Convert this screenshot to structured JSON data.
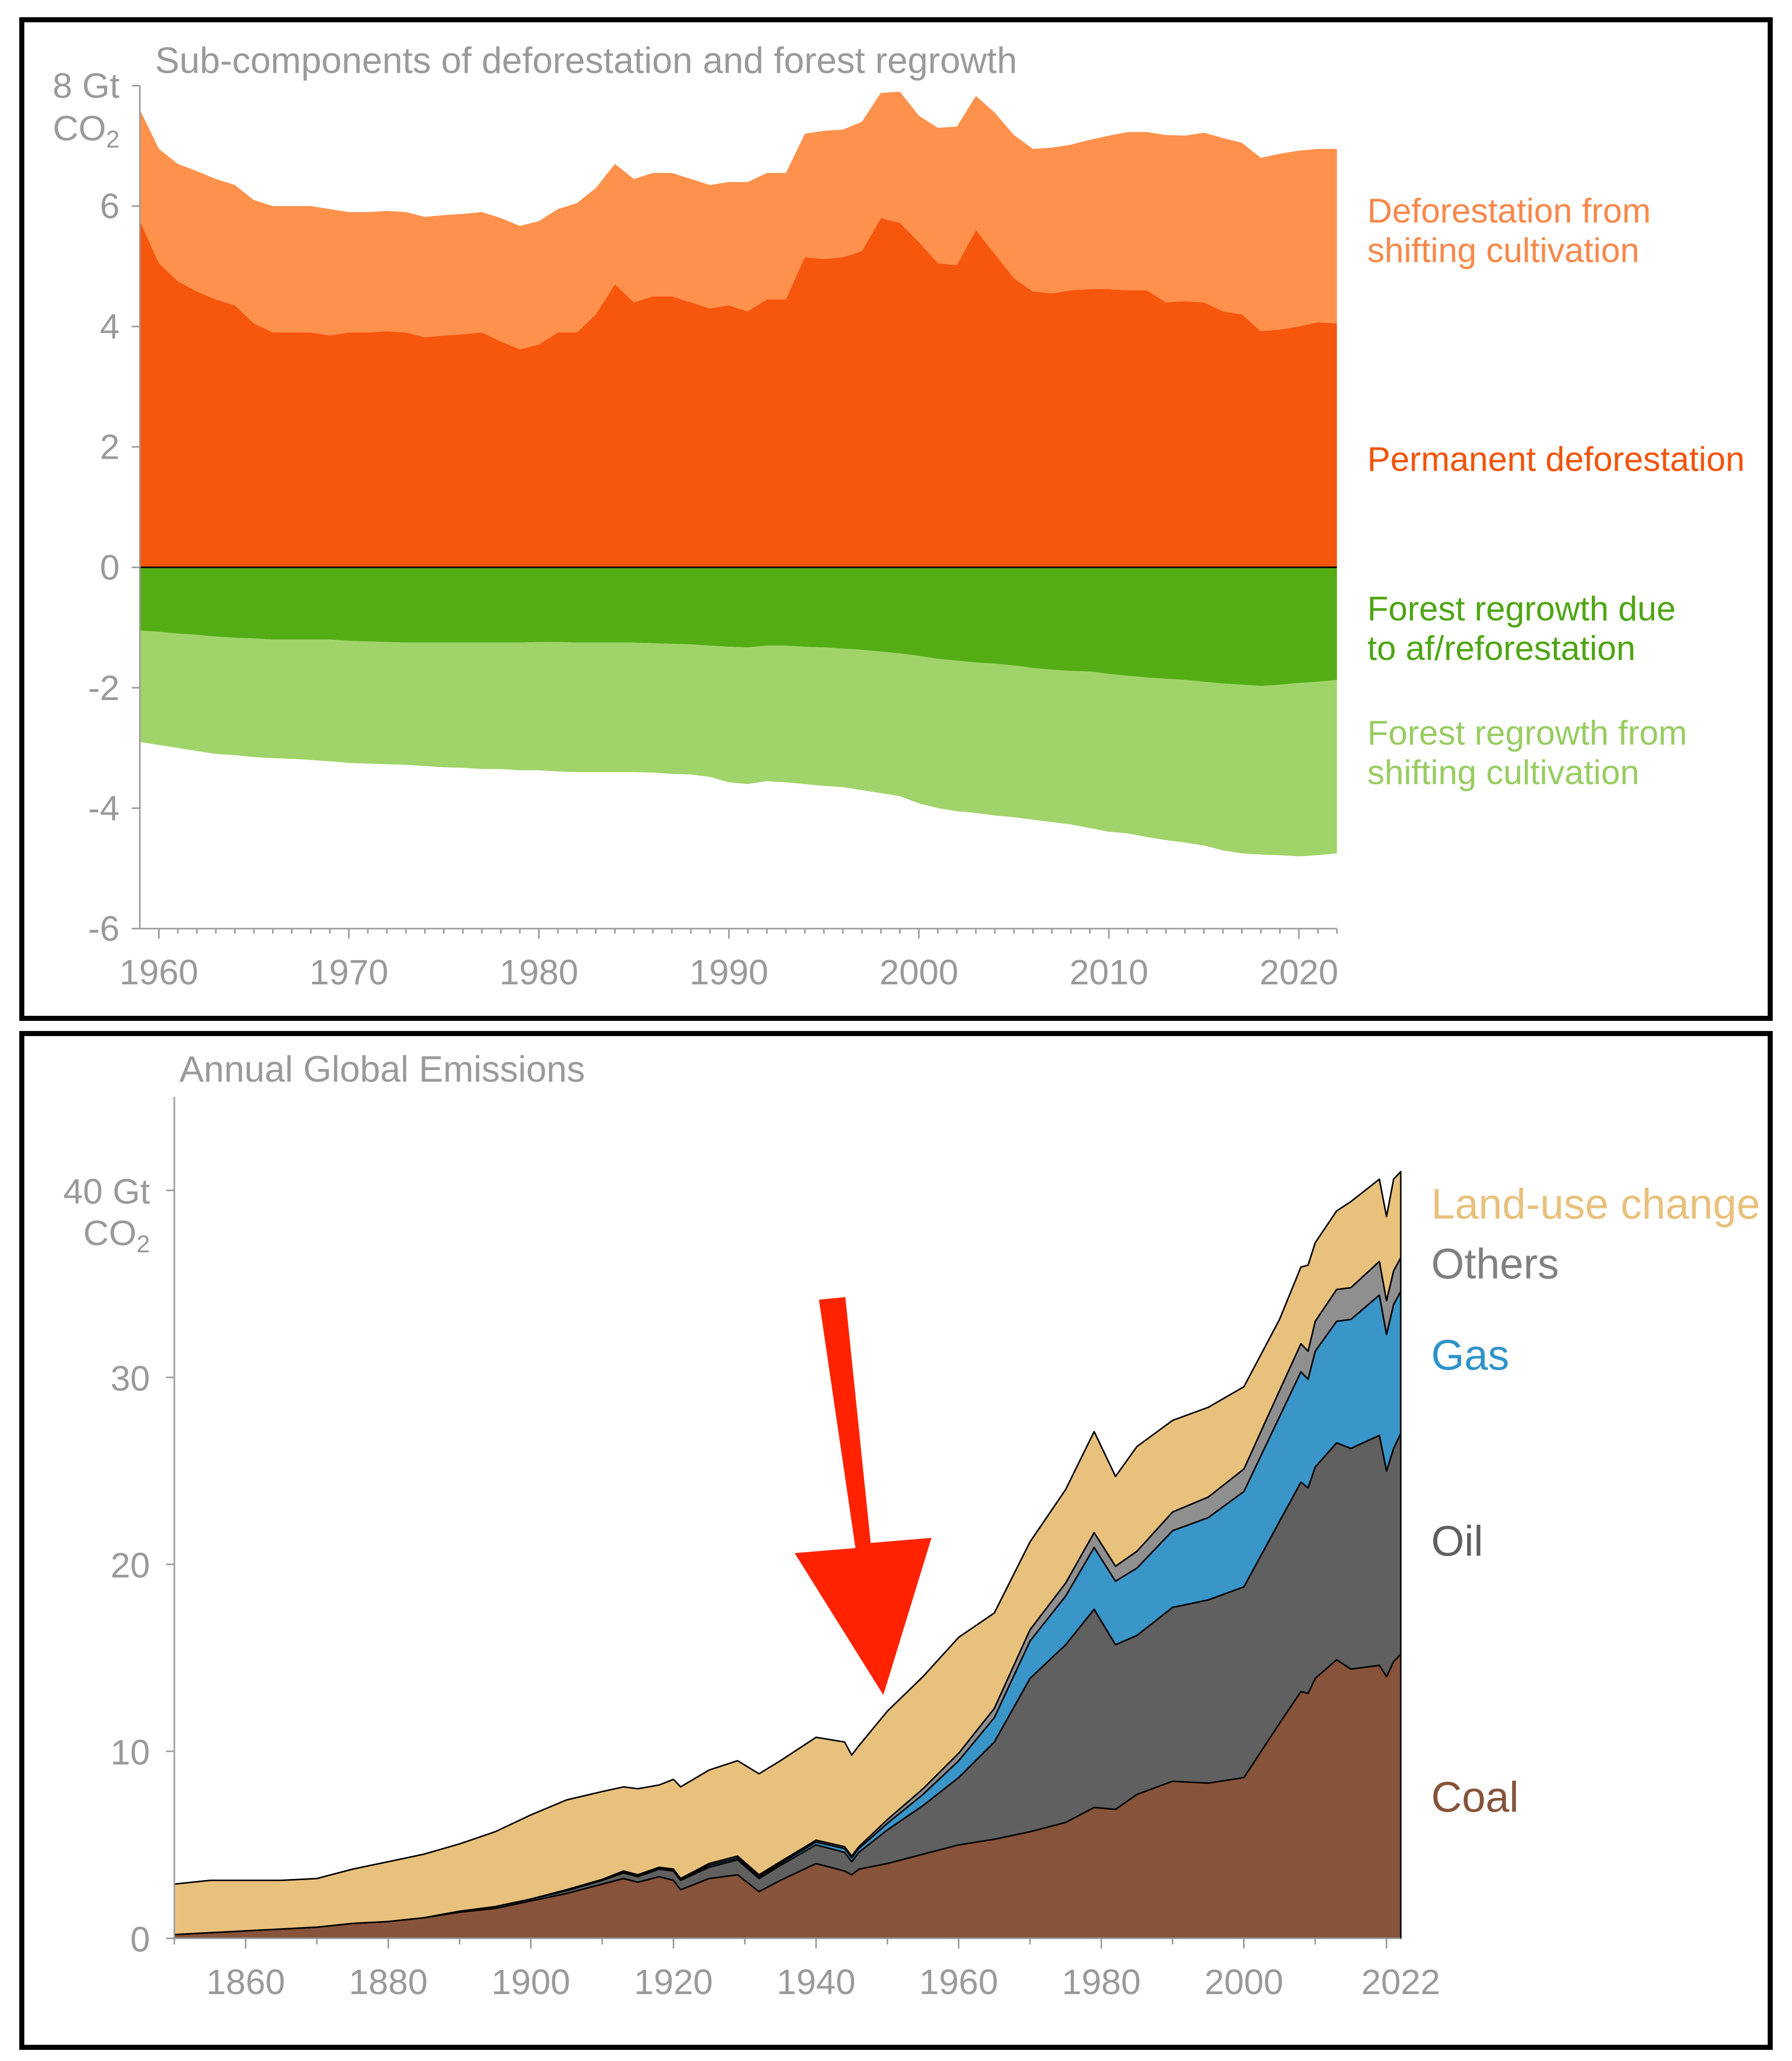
{
  "chart_data": [
    {
      "type": "area",
      "title": "Sub-components of deforestation and forest regrowth",
      "ylabel_line1": "8 Gt",
      "ylabel_line2": "CO",
      "ylabel_sub": "2",
      "ylim": [
        -6,
        8
      ],
      "xlim": [
        1959,
        2022
      ],
      "xticks": [
        "1960",
        "1970",
        "1980",
        "1990",
        "2000",
        "2010",
        "2020"
      ],
      "yticks": [
        "6",
        "4",
        "2",
        "0",
        "-2",
        "-4",
        "-6"
      ],
      "grid": false,
      "x": [
        1959,
        1960,
        1961,
        1962,
        1963,
        1964,
        1965,
        1966,
        1967,
        1968,
        1969,
        1970,
        1971,
        1972,
        1973,
        1974,
        1975,
        1976,
        1977,
        1978,
        1979,
        1980,
        1981,
        1982,
        1983,
        1984,
        1985,
        1986,
        1987,
        1988,
        1989,
        1990,
        1991,
        1992,
        1993,
        1994,
        1995,
        1996,
        1997,
        1998,
        1999,
        2000,
        2001,
        2002,
        2003,
        2004,
        2005,
        2006,
        2007,
        2008,
        2009,
        2010,
        2011,
        2012,
        2013,
        2014,
        2015,
        2016,
        2017,
        2018,
        2019,
        2020,
        2021,
        2022
      ],
      "series": [
        {
          "name": "Permanent deforestation",
          "color": "#f7560d",
          "values": [
            5.75,
            5.05,
            4.75,
            4.58,
            4.45,
            4.35,
            4.05,
            3.9,
            3.9,
            3.9,
            3.85,
            3.9,
            3.9,
            3.92,
            3.9,
            3.82,
            3.85,
            3.87,
            3.9,
            3.75,
            3.62,
            3.7,
            3.9,
            3.9,
            4.2,
            4.7,
            4.4,
            4.5,
            4.5,
            4.4,
            4.3,
            4.35,
            4.25,
            4.45,
            4.45,
            5.15,
            5.12,
            5.15,
            5.25,
            5.8,
            5.72,
            5.4,
            5.05,
            5.02,
            5.6,
            5.2,
            4.8,
            4.58,
            4.55,
            4.6,
            4.62,
            4.62,
            4.6,
            4.6,
            4.4,
            4.42,
            4.4,
            4.25,
            4.2,
            3.92,
            3.95,
            4.0,
            4.07,
            4.05
          ]
        },
        {
          "name": "Deforestation from shifting cultivation",
          "color": "#fe914c",
          "values": [
            1.85,
            1.9,
            1.95,
            2.0,
            2.0,
            2.0,
            2.05,
            2.1,
            2.1,
            2.1,
            2.1,
            2.0,
            2.0,
            2.0,
            2.0,
            2.0,
            2.0,
            2.0,
            2.0,
            2.05,
            2.05,
            2.05,
            2.05,
            2.15,
            2.1,
            2.0,
            2.05,
            2.05,
            2.05,
            2.05,
            2.05,
            2.05,
            2.15,
            2.1,
            2.1,
            2.05,
            2.13,
            2.12,
            2.15,
            2.08,
            2.18,
            2.1,
            2.25,
            2.3,
            2.23,
            2.35,
            2.38,
            2.37,
            2.42,
            2.42,
            2.48,
            2.55,
            2.63,
            2.63,
            2.78,
            2.75,
            2.82,
            2.88,
            2.85,
            2.88,
            2.92,
            2.92,
            2.88,
            2.9
          ]
        },
        {
          "name": "Forest regrowth due to af/reforestation",
          "color": "#55ad16",
          "values": [
            -1.05,
            -1.07,
            -1.1,
            -1.12,
            -1.15,
            -1.17,
            -1.18,
            -1.2,
            -1.2,
            -1.2,
            -1.2,
            -1.22,
            -1.23,
            -1.24,
            -1.25,
            -1.25,
            -1.25,
            -1.25,
            -1.25,
            -1.25,
            -1.25,
            -1.24,
            -1.24,
            -1.25,
            -1.25,
            -1.25,
            -1.25,
            -1.26,
            -1.27,
            -1.28,
            -1.3,
            -1.32,
            -1.33,
            -1.3,
            -1.3,
            -1.32,
            -1.33,
            -1.35,
            -1.37,
            -1.4,
            -1.43,
            -1.47,
            -1.52,
            -1.55,
            -1.58,
            -1.6,
            -1.63,
            -1.67,
            -1.7,
            -1.72,
            -1.73,
            -1.77,
            -1.8,
            -1.83,
            -1.85,
            -1.87,
            -1.9,
            -1.93,
            -1.95,
            -1.97,
            -1.95,
            -1.92,
            -1.9,
            -1.87
          ]
        },
        {
          "name": "Forest regrowth from shifting cultivation",
          "color": "#a0d46a",
          "values": [
            -1.85,
            -1.88,
            -1.9,
            -1.93,
            -1.95,
            -1.95,
            -1.97,
            -1.97,
            -1.98,
            -2.0,
            -2.02,
            -2.03,
            -2.03,
            -2.03,
            -2.03,
            -2.05,
            -2.07,
            -2.08,
            -2.1,
            -2.1,
            -2.12,
            -2.13,
            -2.15,
            -2.15,
            -2.15,
            -2.15,
            -2.15,
            -2.15,
            -2.16,
            -2.16,
            -2.18,
            -2.25,
            -2.27,
            -2.25,
            -2.27,
            -2.28,
            -2.3,
            -2.3,
            -2.33,
            -2.35,
            -2.37,
            -2.45,
            -2.48,
            -2.5,
            -2.5,
            -2.52,
            -2.52,
            -2.52,
            -2.53,
            -2.55,
            -2.6,
            -2.62,
            -2.62,
            -2.65,
            -2.68,
            -2.7,
            -2.72,
            -2.77,
            -2.8,
            -2.8,
            -2.83,
            -2.88,
            -2.88,
            -2.88
          ]
        }
      ],
      "annotations": [
        {
          "lines": [
            "Deforestation from",
            "shifting cultivation"
          ],
          "color": "#f7884a"
        },
        {
          "lines": [
            "Permanent deforestation"
          ],
          "color": "#f35309"
        },
        {
          "lines": [
            "Forest regrowth due",
            "to af/reforestation"
          ],
          "color": "#4fa514"
        },
        {
          "lines": [
            "Forest regrowth from",
            "shifting cultivation"
          ],
          "color": "#99cc62"
        }
      ]
    },
    {
      "type": "area",
      "title": "Annual Global Emissions",
      "ylabel_line1": "40 Gt",
      "ylabel_line2": "CO",
      "ylabel_sub": "2",
      "ylim": [
        0,
        45
      ],
      "xlim": [
        1850,
        2022
      ],
      "xticks": [
        "1860",
        "1880",
        "1900",
        "1920",
        "1940",
        "1960",
        "1980",
        "2000",
        "2022"
      ],
      "yticks": [
        "30",
        "20",
        "10",
        "0"
      ],
      "grid": false,
      "x": [
        1850,
        1855,
        1860,
        1865,
        1870,
        1875,
        1880,
        1885,
        1890,
        1895,
        1900,
        1905,
        1910,
        1913,
        1915,
        1918,
        1920,
        1921,
        1925,
        1929,
        1932,
        1935,
        1940,
        1944,
        1945,
        1946,
        1950,
        1955,
        1960,
        1965,
        1970,
        1975,
        1979,
        1982,
        1985,
        1990,
        1995,
        2000,
        2005,
        2008,
        2009,
        2010,
        2013,
        2015,
        2019,
        2020,
        2021,
        2022
      ],
      "series": [
        {
          "name": "Coal",
          "color": "#87533a",
          "values": [
            0.2,
            0.3,
            0.4,
            0.5,
            0.6,
            0.8,
            0.9,
            1.1,
            1.4,
            1.6,
            2.0,
            2.4,
            2.9,
            3.2,
            3.0,
            3.3,
            3.1,
            2.6,
            3.2,
            3.4,
            2.5,
            3.1,
            4.0,
            3.6,
            3.4,
            3.7,
            4.0,
            4.5,
            5.0,
            5.3,
            5.7,
            6.2,
            7.0,
            6.9,
            7.7,
            8.4,
            8.3,
            8.6,
            11.5,
            13.2,
            13.1,
            13.9,
            14.9,
            14.4,
            14.6,
            14.0,
            14.8,
            15.2
          ]
        },
        {
          "name": "Oil",
          "color": "#606060",
          "values": [
            0.0,
            0.0,
            0.0,
            0.0,
            0.0,
            0.0,
            0.0,
            0.0,
            0.05,
            0.1,
            0.1,
            0.15,
            0.2,
            0.3,
            0.3,
            0.4,
            0.5,
            0.5,
            0.6,
            0.8,
            0.7,
            0.8,
            1.0,
            1.0,
            0.7,
            0.9,
            1.8,
            2.6,
            3.6,
            5.2,
            8.2,
            9.5,
            10.6,
            8.8,
            8.5,
            9.3,
            9.8,
            10.2,
            10.8,
            11.2,
            11.0,
            11.3,
            11.6,
            11.8,
            12.3,
            11.0,
            11.4,
            11.8
          ]
        },
        {
          "name": "Gas",
          "color": "#3a95c9",
          "values": [
            0.0,
            0.0,
            0.0,
            0.0,
            0.0,
            0.0,
            0.0,
            0.0,
            0.0,
            0.0,
            0.0,
            0.0,
            0.0,
            0.05,
            0.05,
            0.05,
            0.05,
            0.05,
            0.1,
            0.1,
            0.1,
            0.1,
            0.15,
            0.2,
            0.2,
            0.2,
            0.35,
            0.6,
            0.9,
            1.3,
            2.0,
            2.6,
            3.3,
            3.4,
            3.6,
            4.1,
            4.4,
            5.1,
            5.6,
            5.9,
            5.8,
            6.2,
            6.5,
            6.9,
            7.5,
            7.3,
            7.7,
            7.6
          ]
        },
        {
          "name": "Others",
          "color": "#8f8f8f",
          "values": [
            0.0,
            0.0,
            0.0,
            0.0,
            0.0,
            0.0,
            0.0,
            0.0,
            0.0,
            0.0,
            0.0,
            0.05,
            0.05,
            0.05,
            0.05,
            0.05,
            0.05,
            0.05,
            0.1,
            0.1,
            0.1,
            0.1,
            0.1,
            0.1,
            0.1,
            0.1,
            0.2,
            0.3,
            0.4,
            0.5,
            0.6,
            0.7,
            0.8,
            0.8,
            0.9,
            1.0,
            1.1,
            1.2,
            1.4,
            1.5,
            1.5,
            1.6,
            1.7,
            1.7,
            1.8,
            1.8,
            1.8,
            1.8
          ]
        },
        {
          "name": "Land-use change",
          "color": "#e8c17d",
          "values": [
            2.7,
            2.8,
            2.7,
            2.6,
            2.6,
            2.9,
            3.2,
            3.4,
            3.6,
            4.0,
            4.5,
            4.8,
            4.7,
            4.5,
            4.6,
            4.4,
            4.8,
            4.9,
            5.0,
            5.1,
            5.4,
            5.4,
            5.5,
            5.6,
            5.4,
            5.4,
            5.8,
            6.0,
            6.2,
            5.1,
            4.7,
            5.0,
            5.4,
            4.8,
            5.6,
            4.9,
            4.8,
            4.4,
            3.8,
            4.1,
            4.6,
            4.2,
            4.2,
            4.6,
            4.4,
            4.5,
            4.9,
            4.6
          ]
        }
      ],
      "annotations": [
        {
          "lines": [
            "Land-use change"
          ],
          "color": "#e8c17d"
        },
        {
          "lines": [
            "Others"
          ],
          "color": "#808080"
        },
        {
          "lines": [
            "Gas"
          ],
          "color": "#2f93c9"
        },
        {
          "lines": [
            "Oil"
          ],
          "color": "#606060"
        },
        {
          "lines": [
            "Coal"
          ],
          "color": "#86533a"
        }
      ],
      "arrow_color": "#ff2200"
    }
  ]
}
